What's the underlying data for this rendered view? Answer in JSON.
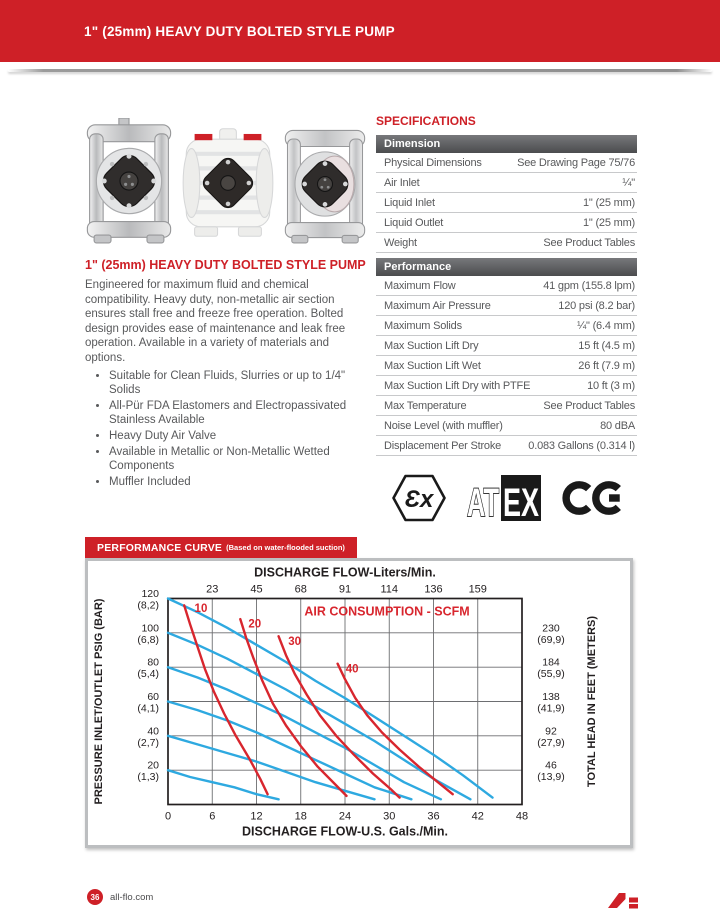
{
  "header": {
    "title_prefix": "1\" (25mm) HEAVY DUTY ",
    "title_bold": "BOLTED",
    "title_suffix": " STYLE PUMP"
  },
  "images": {
    "items": [
      {
        "name": "metallic-bolted-pump-photo"
      },
      {
        "name": "non-metallic-bolted-pump-photo"
      },
      {
        "name": "stainless-bolted-pump-photo"
      }
    ]
  },
  "description": {
    "title_prefix": "1\" (25mm) HEAVY DUTY ",
    "title_bold": "BOLTED",
    "title_suffix": " STYLE PUMP",
    "paragraph": "Engineered for maximum fluid and chemical compatibility. Heavy duty, non-metallic air section ensures stall free and freeze free operation. Bolted design provides ease of maintenance and leak free operation. Available in a variety of materials and options.",
    "bullets": [
      "Suitable for Clean Fluids, Slurries or up to 1/4\" Solids",
      "All-Pür FDA Elastomers and Electropassivated Stainless Available",
      "Heavy Duty Air Valve",
      "Available in Metallic or Non-Metallic Wetted Components",
      "Muffler Included"
    ]
  },
  "specifications": {
    "heading": "SPECIFICATIONS",
    "groups": [
      {
        "header": "Dimension",
        "rows": [
          {
            "label": "Physical Dimensions",
            "value": "See Drawing Page 75/76"
          },
          {
            "label": "Air Inlet",
            "value": "¼\""
          },
          {
            "label": "Liquid Inlet",
            "value": "1\" (25 mm)"
          },
          {
            "label": "Liquid Outlet",
            "value": "1\" (25 mm)"
          },
          {
            "label": "Weight",
            "value": "See Product Tables"
          }
        ]
      },
      {
        "header": "Performance",
        "rows": [
          {
            "label": "Maximum Flow",
            "value": "41 gpm (155.8 lpm)"
          },
          {
            "label": "Maximum Air Pressure",
            "value": "120 psi (8.2 bar)"
          },
          {
            "label": "Maximum Solids",
            "value": "¼\" (6.4 mm)"
          },
          {
            "label": "Max Suction Lift Dry",
            "value": "15 ft (4.5 m)"
          },
          {
            "label": "Max Suction Lift Wet",
            "value": "26 ft (7.9 m)"
          },
          {
            "label": "Max Suction Lift Dry with PTFE",
            "value": "10 ft (3 m)"
          },
          {
            "label": "Max Temperature",
            "value": "See Product Tables"
          },
          {
            "label": "Noise Level (with muffler)",
            "value": "80 dBA"
          },
          {
            "label": "Displacement Per Stroke",
            "value": "0.083 Gallons (0.314 l)"
          }
        ]
      }
    ]
  },
  "certifications": {
    "ex_mark": "Ɛx",
    "atex_outline": "AT",
    "atex_box": "EX",
    "ce_mark": "CE"
  },
  "chart_data": {
    "type": "line",
    "title": "PERFORMANCE CURVE",
    "subtitle": "(Based on water-flooded suction)",
    "annotation": "AIR CONSUMPTION - SCFM",
    "top_axis": {
      "label": "DISCHARGE FLOW-Liters/Min.",
      "ticks": [
        {
          "x": 6,
          "label": "23"
        },
        {
          "x": 12,
          "label": "45"
        },
        {
          "x": 18,
          "label": "68"
        },
        {
          "x": 24,
          "label": "91"
        },
        {
          "x": 30,
          "label": "114"
        },
        {
          "x": 36,
          "label": "136"
        },
        {
          "x": 42,
          "label": "159"
        }
      ]
    },
    "bottom_axis": {
      "label": "DISCHARGE FLOW-U.S. Gals./Min.",
      "ticks": [
        0,
        6,
        12,
        18,
        24,
        30,
        36,
        42,
        48
      ]
    },
    "left_axis": {
      "label": "PRESSURE INLET/OUTLET PSIG (BAR)",
      "ticks": [
        {
          "psi": 120,
          "line1": "120",
          "line2": "(8,2)"
        },
        {
          "psi": 100,
          "line1": "100",
          "line2": "(6,8)"
        },
        {
          "psi": 80,
          "line1": "80",
          "line2": "(5,4)"
        },
        {
          "psi": 60,
          "line1": "60",
          "line2": "(4,1)"
        },
        {
          "psi": 40,
          "line1": "40",
          "line2": "(2,7)"
        },
        {
          "psi": 20,
          "line1": "20",
          "line2": "(1,3)"
        }
      ]
    },
    "right_axis": {
      "label": "TOTAL HEAD IN FEET (METERS)",
      "ticks": [
        {
          "psi": 100,
          "line1": "230",
          "line2": "(69,9)"
        },
        {
          "psi": 80,
          "line1": "184",
          "line2": "(55,9)"
        },
        {
          "psi": 60,
          "line1": "138",
          "line2": "(41,9)"
        },
        {
          "psi": 40,
          "line1": "92",
          "line2": "(27,9)"
        },
        {
          "psi": 20,
          "line1": "46",
          "line2": "(13,9)"
        }
      ]
    },
    "xlim": [
      0,
      48
    ],
    "ylim": [
      0,
      120
    ],
    "grid": {
      "x_step": 6,
      "y_step": 20
    },
    "colors": {
      "flow_curve": "#2ea9e0",
      "air_curve": "#d8262e",
      "grid": "#6d6e71",
      "frame": "#231f20"
    },
    "series": [
      {
        "name": "discharge-120psi",
        "points": [
          [
            0,
            120
          ],
          [
            4,
            112
          ],
          [
            8,
            103
          ],
          [
            12,
            93
          ],
          [
            16,
            83
          ],
          [
            20,
            72
          ],
          [
            24,
            62
          ],
          [
            28,
            51
          ],
          [
            32,
            40
          ],
          [
            36,
            29
          ],
          [
            40,
            17
          ],
          [
            44,
            4
          ]
        ]
      },
      {
        "name": "discharge-100psi",
        "points": [
          [
            0,
            100
          ],
          [
            4,
            93
          ],
          [
            8,
            85
          ],
          [
            12,
            76
          ],
          [
            16,
            67
          ],
          [
            20,
            57
          ],
          [
            24,
            47
          ],
          [
            28,
            37
          ],
          [
            32,
            26
          ],
          [
            36,
            15
          ],
          [
            41,
            3
          ]
        ]
      },
      {
        "name": "discharge-80psi",
        "points": [
          [
            0,
            80
          ],
          [
            4,
            74
          ],
          [
            8,
            67
          ],
          [
            12,
            59
          ],
          [
            16,
            51
          ],
          [
            20,
            42
          ],
          [
            24,
            33
          ],
          [
            28,
            23
          ],
          [
            32,
            13
          ],
          [
            37,
            3
          ]
        ]
      },
      {
        "name": "discharge-60psi",
        "points": [
          [
            0,
            60
          ],
          [
            4,
            55
          ],
          [
            8,
            49
          ],
          [
            12,
            42
          ],
          [
            16,
            34
          ],
          [
            20,
            26
          ],
          [
            24,
            18
          ],
          [
            28,
            10
          ],
          [
            33,
            3
          ]
        ]
      },
      {
        "name": "discharge-40psi",
        "points": [
          [
            0,
            40
          ],
          [
            4,
            35
          ],
          [
            8,
            30
          ],
          [
            12,
            25
          ],
          [
            16,
            19
          ],
          [
            20,
            13
          ],
          [
            24,
            8
          ],
          [
            28,
            3
          ]
        ]
      },
      {
        "name": "discharge-20psi",
        "points": [
          [
            0,
            20
          ],
          [
            3,
            16
          ],
          [
            6,
            13
          ],
          [
            9,
            10
          ],
          [
            12,
            6
          ],
          [
            15,
            3
          ]
        ]
      }
    ],
    "air_curves": [
      {
        "label": "10",
        "label_at": [
          3.6,
          112
        ],
        "points": [
          [
            2.2,
            116
          ],
          [
            3,
            105
          ],
          [
            4,
            92
          ],
          [
            5,
            79
          ],
          [
            6.2,
            66
          ],
          [
            7.6,
            53
          ],
          [
            9.2,
            40
          ],
          [
            11,
            27
          ],
          [
            12.5,
            15
          ],
          [
            13.5,
            6
          ]
        ]
      },
      {
        "label": "20",
        "label_at": [
          10.9,
          103
        ],
        "points": [
          [
            9.8,
            108
          ],
          [
            10.6,
            97
          ],
          [
            11.6,
            85
          ],
          [
            12.8,
            72
          ],
          [
            14.2,
            59
          ],
          [
            16,
            46
          ],
          [
            18,
            34
          ],
          [
            20.3,
            22
          ],
          [
            22.6,
            12
          ],
          [
            24.2,
            5
          ]
        ]
      },
      {
        "label": "30",
        "label_at": [
          16.3,
          93
        ],
        "points": [
          [
            15,
            98
          ],
          [
            16,
            87
          ],
          [
            17.2,
            76
          ],
          [
            18.8,
            64
          ],
          [
            20.6,
            52
          ],
          [
            22.8,
            40
          ],
          [
            25.2,
            29
          ],
          [
            27.8,
            18
          ],
          [
            30.2,
            9
          ],
          [
            31.4,
            4
          ]
        ]
      },
      {
        "label": "40",
        "label_at": [
          24.1,
          77
        ],
        "points": [
          [
            23,
            82
          ],
          [
            24,
            73
          ],
          [
            25.4,
            62
          ],
          [
            27,
            52
          ],
          [
            29,
            42
          ],
          [
            31.4,
            32
          ],
          [
            34,
            22
          ],
          [
            36.6,
            13
          ],
          [
            38.6,
            6
          ]
        ]
      }
    ]
  },
  "footer": {
    "page_number": "36",
    "site": "all-flo.com"
  },
  "colors": {
    "brand_red": "#ce2027",
    "text_gray": "#58595b",
    "table_header_dark": "#55565a",
    "curve_blue": "#2ea9e0"
  }
}
